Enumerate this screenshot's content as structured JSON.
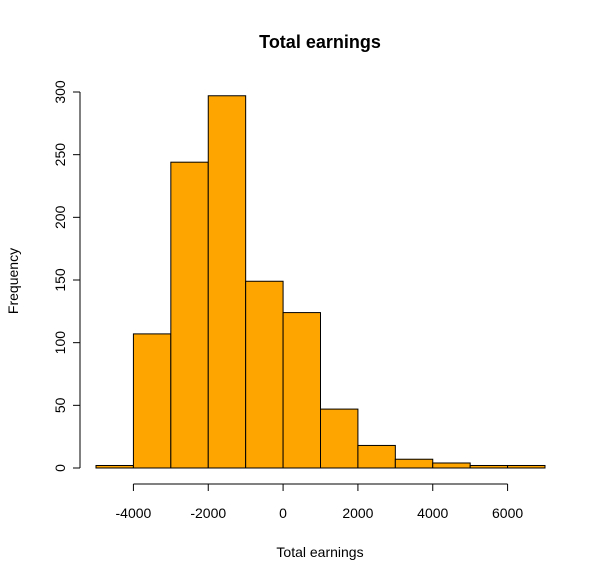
{
  "chart_data": {
    "type": "bar",
    "title": "Total earnings",
    "xlabel": "Total earnings",
    "ylabel": "Frequency",
    "bin_edges": [
      -5000,
      -4000,
      -3000,
      -2000,
      -1000,
      0,
      1000,
      2000,
      3000,
      4000,
      5000,
      6000,
      7000
    ],
    "values": [
      2,
      107,
      244,
      297,
      149,
      124,
      47,
      18,
      7,
      4,
      2,
      2
    ],
    "xlim": [
      -5000,
      7000
    ],
    "ylim": [
      0,
      300
    ],
    "x_ticks": [
      -4000,
      -2000,
      0,
      2000,
      4000,
      6000
    ],
    "x_tick_labels": [
      "-4000",
      "-2000",
      "0",
      "2000",
      "4000",
      "6000"
    ],
    "y_ticks": [
      0,
      50,
      100,
      150,
      200,
      250,
      300
    ],
    "y_tick_labels": [
      "0",
      "50",
      "100",
      "150",
      "200",
      "250",
      "300"
    ],
    "bar_color": "#FFA500",
    "grid": false,
    "legend": "none"
  }
}
